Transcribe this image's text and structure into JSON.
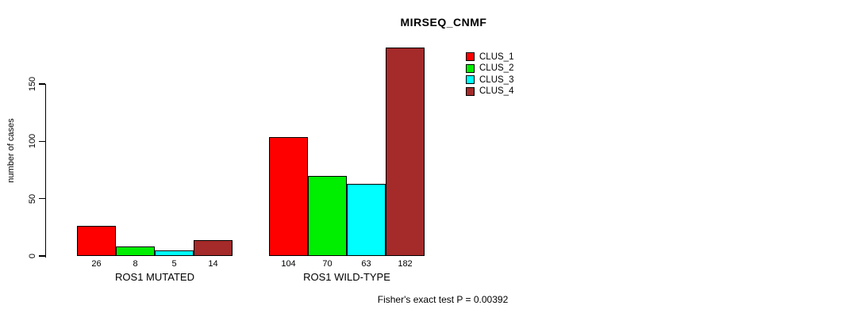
{
  "title": "MIRSEQ_CNMF",
  "footer_note": "Fisher's exact test P = 0.00392",
  "chart_data": {
    "type": "bar",
    "title": "MIRSEQ_CNMF",
    "xlabel": "",
    "ylabel": "number of cases",
    "categories": [
      "ROS1 MUTATED",
      "ROS1 WILD-TYPE"
    ],
    "series": [
      {
        "name": "CLUS_1",
        "color": "#ff0000",
        "values": [
          26,
          104
        ]
      },
      {
        "name": "CLUS_2",
        "color": "#00ee00",
        "values": [
          8,
          70
        ]
      },
      {
        "name": "CLUS_3",
        "color": "#00ffff",
        "values": [
          5,
          63
        ]
      },
      {
        "name": "CLUS_4",
        "color": "#a52a2a",
        "values": [
          14,
          182
        ]
      }
    ],
    "bar_value_labels": [
      [
        "26",
        "8",
        "5",
        "14"
      ],
      [
        "104",
        "70",
        "63",
        "182"
      ]
    ],
    "y_ticks": [
      0,
      50,
      100,
      150
    ],
    "ylim": [
      0,
      183
    ],
    "grid": false,
    "legend_position": "top-right",
    "annotation": "Fisher's exact test P = 0.00392"
  }
}
